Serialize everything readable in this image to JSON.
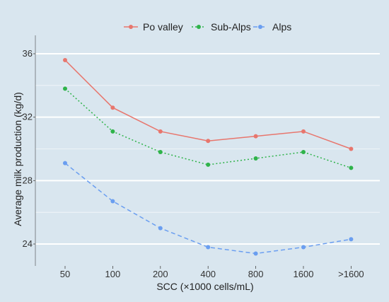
{
  "chart_data": {
    "type": "line",
    "title": "",
    "xlabel": "SCC (×1000 cells/mL)",
    "ylabel": "Average milk production (kg/d)",
    "categories": [
      "50",
      "100",
      "200",
      "400",
      "800",
      "1600",
      ">1600"
    ],
    "ylim": [
      22.8,
      37.2
    ],
    "yticks": [
      24,
      28,
      32,
      36
    ],
    "grid": true,
    "legend_position": "top",
    "background_color": "#d9e6ef",
    "series": [
      {
        "name": "Po valley",
        "color": "#e8766d",
        "dash": "solid",
        "values": [
          35.6,
          32.6,
          31.1,
          30.5,
          30.8,
          31.1,
          30.0
        ]
      },
      {
        "name": "Sub-Alps",
        "color": "#2fb34a",
        "dash": "dotted",
        "values": [
          33.8,
          31.1,
          29.8,
          29.0,
          29.4,
          29.8,
          28.8
        ]
      },
      {
        "name": "Alps",
        "color": "#6a9ef0",
        "dash": "dashed",
        "values": [
          29.1,
          26.7,
          25.0,
          23.8,
          23.4,
          23.8,
          24.3
        ]
      }
    ]
  }
}
